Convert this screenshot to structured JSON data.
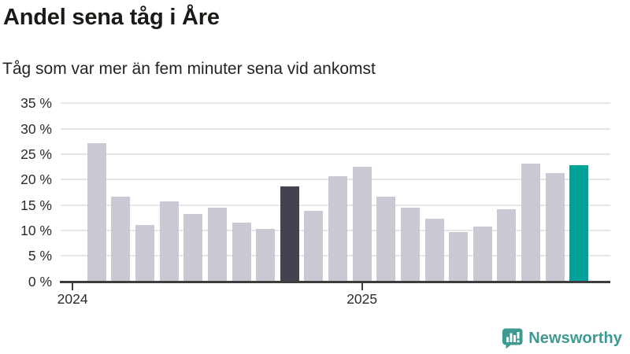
{
  "header": {
    "title": "Andel sena tåg i Åre",
    "subtitle": "Tåg som var mer än fem minuter sena vid ankomst"
  },
  "branding": {
    "logo_text": "Newsworthy",
    "logo_icon": "speech-bubble-bar-chart-icon",
    "logo_color": "#3d9a93"
  },
  "colors": {
    "bar_default": "#c9c8d3",
    "bar_highlight_dark": "#424250",
    "bar_highlight_teal": "#00a29a",
    "gridline": "#e6e6e9",
    "axis_line": "#3d3d3d",
    "tick_text": "#2b2b2b",
    "title_text": "#1a1a17"
  },
  "chart_data": {
    "type": "bar",
    "title": "Andel sena tåg i Åre",
    "subtitle": "Tåg som var mer än fem minuter sena vid ankomst",
    "unit": "%",
    "grid": true,
    "legend": false,
    "ylim": [
      0,
      35
    ],
    "y_tick_step": 5,
    "y_tick_labels_top_to_bottom": [
      "35 %",
      "30 %",
      "25 %",
      "20 %",
      "15 %",
      "10 %",
      "5 %",
      "0 %"
    ],
    "x_ticks": [
      {
        "label": "2024",
        "month_offset": 0
      },
      {
        "label": "2025",
        "month_offset": 12
      }
    ],
    "categories": [
      "2024-02",
      "2024-03",
      "2024-04",
      "2024-05",
      "2024-06",
      "2024-07",
      "2024-08",
      "2024-09",
      "2024-10",
      "2024-11",
      "2024-12",
      "2025-01",
      "2025-02",
      "2025-03",
      "2025-04",
      "2025-05",
      "2025-06",
      "2025-07",
      "2025-08",
      "2025-09",
      "2025-10"
    ],
    "values": [
      27.1,
      16.6,
      11.0,
      15.7,
      13.3,
      14.5,
      11.5,
      10.3,
      18.7,
      13.9,
      20.7,
      22.5,
      16.6,
      14.5,
      12.3,
      9.7,
      10.8,
      14.1,
      23.1,
      21.3,
      22.9
    ],
    "highlight_dark_index": 8,
    "highlight_teal_index": 20
  }
}
